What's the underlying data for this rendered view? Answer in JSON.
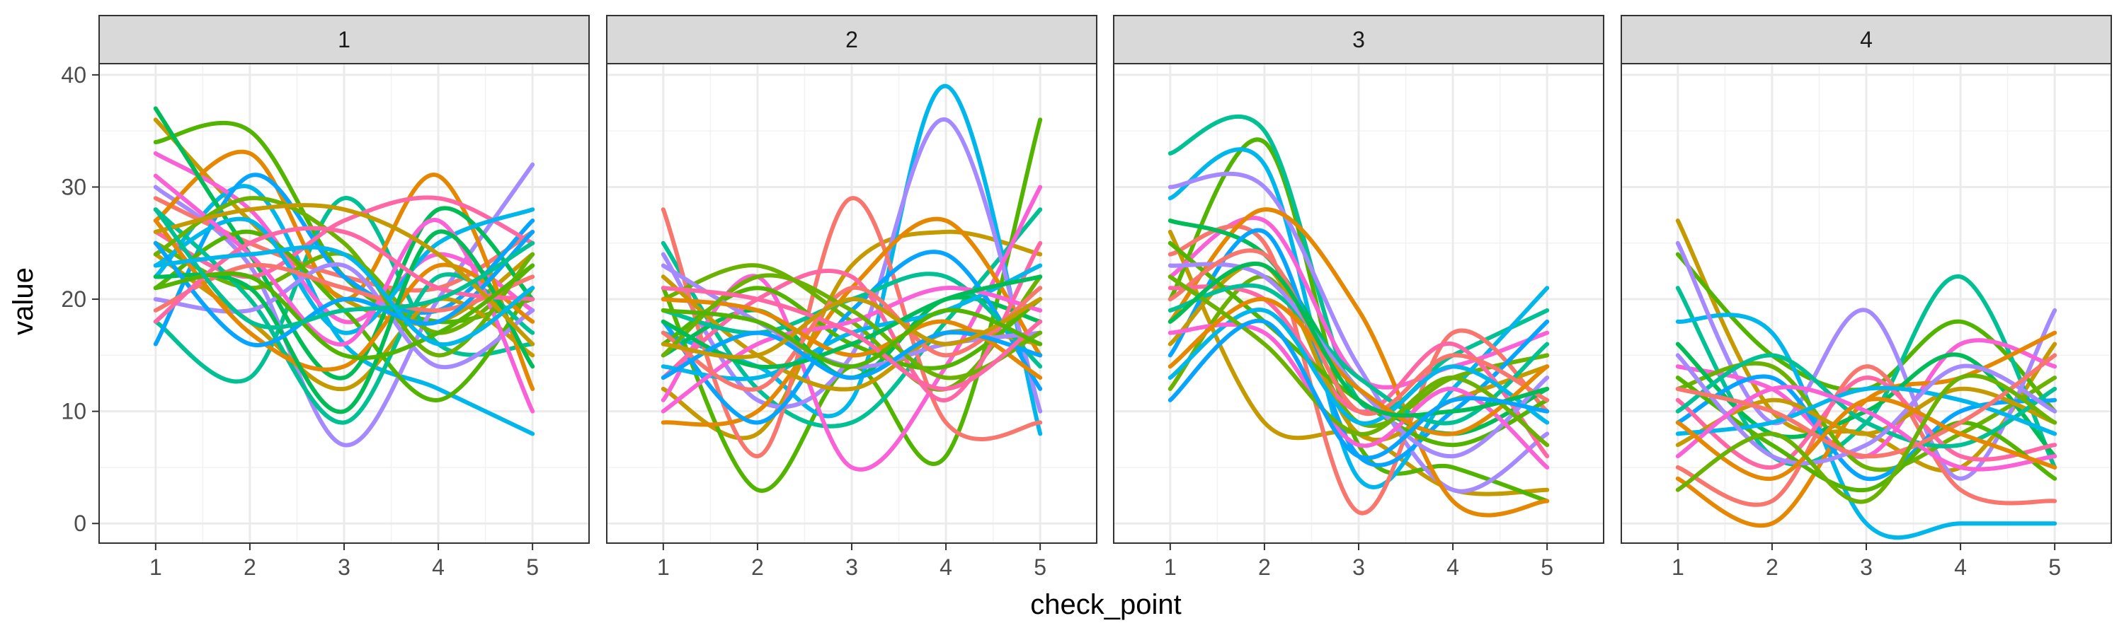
{
  "chart_data": {
    "type": "line",
    "xlabel": "check_point",
    "ylabel": "value",
    "x_ticks": [
      1,
      2,
      3,
      4,
      5
    ],
    "y_ticks": [
      0,
      10,
      20,
      30,
      40
    ],
    "ylim": [
      -1.75,
      41
    ],
    "xlim": [
      0.4,
      5.6
    ],
    "grid": true,
    "legend": "none",
    "panel_strip_color": "#d9d9d9",
    "palette": [
      "#c49a00",
      "#53b400",
      "#00c094",
      "#00b6eb",
      "#a58aff",
      "#fb61d7",
      "#f8766d",
      "#e58700",
      "#6bb100",
      "#00bc56",
      "#06a4ff",
      "#ff67a4"
    ],
    "panels": [
      {
        "label": "1",
        "series": [
          {
            "values": [
              36,
              27,
              20,
              18,
              24
            ]
          },
          {
            "values": [
              34,
              35,
              22,
              18,
              20
            ]
          },
          {
            "values": [
              18,
              13,
              29,
              16,
              16
            ]
          },
          {
            "values": [
              22,
              30,
              16,
              12,
              8
            ]
          },
          {
            "values": [
              30,
              23,
              7,
              20,
              32
            ]
          },
          {
            "values": [
              33,
              28,
              18,
              24,
              19
            ]
          },
          {
            "values": [
              29,
              25,
              22,
              21,
              26
            ]
          },
          {
            "values": [
              27,
              33,
              20,
              31,
              12
            ]
          },
          {
            "values": [
              25,
              21,
              24,
              17,
              23
            ]
          },
          {
            "values": [
              37,
              24,
              13,
              28,
              20
            ]
          },
          {
            "values": [
              16,
              31,
              22,
              19,
              27
            ]
          },
          {
            "values": [
              26,
              22,
              27,
              29,
              25
            ]
          },
          {
            "values": [
              24,
              18,
              12,
              20,
              15
            ]
          },
          {
            "values": [
              21,
              26,
              19,
              11,
              21
            ]
          },
          {
            "values": [
              28,
              20,
              9,
              22,
              17
            ]
          },
          {
            "values": [
              23,
              27,
              17,
              25,
              28
            ]
          },
          {
            "values": [
              20,
              19,
              23,
              14,
              19
            ]
          },
          {
            "values": [
              31,
              24,
              16,
              27,
              10
            ]
          },
          {
            "values": [
              19,
              23,
              21,
              19,
              22
            ]
          },
          {
            "values": [
              27,
              17,
              14,
              23,
              18
            ]
          },
          {
            "values": [
              24,
              29,
              25,
              15,
              24
            ]
          },
          {
            "values": [
              22,
              21,
              10,
              26,
              14
            ]
          },
          {
            "values": [
              25,
              16,
              20,
              18,
              26
            ]
          },
          {
            "values": [
              18,
              25,
              26,
              21,
              20
            ]
          },
          {
            "values": [
              26,
              28,
              28,
              24,
              16
            ]
          },
          {
            "values": [
              21,
              22,
              15,
              17,
              23
            ]
          },
          {
            "values": [
              28,
              18,
              19,
              20,
              25
            ]
          },
          {
            "values": [
              23,
              24,
              24,
              16,
              21
            ]
          }
        ]
      },
      {
        "label": "2",
        "series": [
          {
            "values": [
              12,
              8,
              23,
              26,
              24
            ]
          },
          {
            "values": [
              21,
              3,
              14,
              6,
              36
            ]
          },
          {
            "values": [
              25,
              12,
              9,
              18,
              28
            ]
          },
          {
            "values": [
              17,
              14,
              11,
              39,
              8
            ]
          },
          {
            "values": [
              24,
              11,
              15,
              36,
              10
            ]
          },
          {
            "values": [
              11,
              22,
              5,
              14,
              30
            ]
          },
          {
            "values": [
              28,
              6,
              29,
              9,
              9
            ]
          },
          {
            "values": [
              9,
              10,
              21,
              27,
              15
            ]
          },
          {
            "values": [
              20,
              23,
              18,
              12,
              22
            ]
          },
          {
            "values": [
              15,
              19,
              13,
              20,
              18
            ]
          },
          {
            "values": [
              18,
              9,
              19,
              24,
              12
            ]
          },
          {
            "values": [
              13,
              20,
              22,
              11,
              25
            ]
          },
          {
            "values": [
              22,
              15,
              12,
              17,
              16
            ]
          },
          {
            "values": [
              16,
              21,
              16,
              14,
              20
            ]
          },
          {
            "values": [
              19,
              17,
              20,
              22,
              14
            ]
          },
          {
            "values": [
              14,
              13,
              17,
              19,
              23
            ]
          },
          {
            "values": [
              23,
              18,
              14,
              16,
              17
            ]
          },
          {
            "values": [
              10,
              16,
              18,
              21,
              19
            ]
          },
          {
            "values": [
              17,
              12,
              21,
              15,
              21
            ]
          },
          {
            "values": [
              20,
              19,
              15,
              18,
              13
            ]
          },
          {
            "values": [
              15,
              22,
              19,
              13,
              17
            ]
          },
          {
            "values": [
              18,
              14,
              16,
              20,
              22
            ]
          },
          {
            "values": [
              13,
              17,
              13,
              17,
              15
            ]
          },
          {
            "values": [
              21,
              20,
              17,
              12,
              18
            ]
          },
          {
            "values": [
              16,
              15,
              20,
              16,
              20
            ]
          },
          {
            "values": [
              19,
              18,
              14,
              19,
              16
            ]
          }
        ]
      },
      {
        "label": "3",
        "series": [
          {
            "values": [
              26,
              9,
              8,
              3,
              3
            ]
          },
          {
            "values": [
              20,
              34,
              7,
              5,
              2
            ]
          },
          {
            "values": [
              33,
              35,
              11,
              15,
              19
            ]
          },
          {
            "values": [
              29,
              32,
              4,
              12,
              21
            ]
          },
          {
            "values": [
              30,
              30,
              14,
              3,
              8
            ]
          },
          {
            "values": [
              22,
              27,
              13,
              14,
              17
            ]
          },
          {
            "values": [
              24,
              25,
              1,
              17,
              10
            ]
          },
          {
            "values": [
              18,
              28,
              19,
              2,
              2
            ]
          },
          {
            "values": [
              12,
              22,
              9,
              13,
              15
            ]
          },
          {
            "values": [
              27,
              24,
              12,
              8,
              12
            ]
          },
          {
            "values": [
              15,
              26,
              6,
              10,
              18
            ]
          },
          {
            "values": [
              21,
              20,
              10,
              16,
              6
            ]
          },
          {
            "values": [
              16,
              23,
              8,
              11,
              14
            ]
          },
          {
            "values": [
              25,
              18,
              11,
              7,
              11
            ]
          },
          {
            "values": [
              19,
              21,
              13,
              9,
              16
            ]
          },
          {
            "values": [
              13,
              19,
              9,
              14,
              9
            ]
          },
          {
            "values": [
              23,
              22,
              12,
              6,
              13
            ]
          },
          {
            "values": [
              17,
              17,
              7,
              12,
              5
            ]
          },
          {
            "values": [
              20,
              24,
              10,
              15,
              11
            ]
          },
          {
            "values": [
              14,
              20,
              12,
              8,
              14
            ]
          },
          {
            "values": [
              22,
              16,
              8,
              13,
              7
            ]
          },
          {
            "values": [
              18,
              23,
              11,
              10,
              12
            ]
          },
          {
            "values": [
              11,
              18,
              6,
              11,
              10
            ]
          }
        ]
      },
      {
        "label": "4",
        "series": [
          {
            "values": [
              27,
              10,
              8,
              5,
              16
            ]
          },
          {
            "values": [
              24,
              15,
              12,
              18,
              10
            ]
          },
          {
            "values": [
              21,
              6,
              9,
              22,
              5
            ]
          },
          {
            "values": [
              18,
              17,
              0,
              0,
              0
            ]
          },
          {
            "values": [
              25,
              9,
              19,
              4,
              19
            ]
          },
          {
            "values": [
              14,
              12,
              6,
              16,
              14
            ]
          },
          {
            "values": [
              5,
              2,
              14,
              3,
              2
            ]
          },
          {
            "values": [
              4,
              0,
              11,
              13,
              17
            ]
          },
          {
            "values": [
              12,
              14,
              5,
              8,
              13
            ]
          },
          {
            "values": [
              16,
              8,
              10,
              15,
              6
            ]
          },
          {
            "values": [
              9,
              13,
              4,
              10,
              11
            ]
          },
          {
            "values": [
              11,
              5,
              13,
              6,
              7
            ]
          },
          {
            "values": [
              7,
              11,
              8,
              12,
              9
            ]
          },
          {
            "values": [
              13,
              7,
              3,
              9,
              4
            ]
          },
          {
            "values": [
              10,
              15,
              9,
              7,
              12
            ]
          },
          {
            "values": [
              8,
              9,
              12,
              11,
              8
            ]
          },
          {
            "values": [
              15,
              6,
              7,
              14,
              10
            ]
          },
          {
            "values": [
              6,
              12,
              10,
              5,
              6
            ]
          },
          {
            "values": [
              12,
              10,
              6,
              9,
              15
            ]
          },
          {
            "values": [
              9,
              4,
              11,
              8,
              5
            ]
          },
          {
            "values": [
              3,
              8,
              2,
              13,
              9
            ]
          }
        ]
      }
    ]
  }
}
